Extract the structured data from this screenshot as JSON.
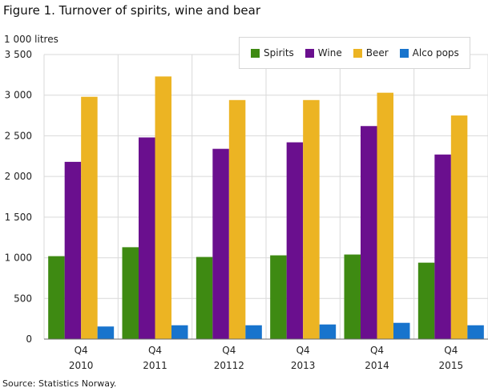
{
  "title": "Figure 1. Turnover of spirits, wine and bear",
  "source": "Source: Statistics Norway.",
  "chart_data": {
    "type": "bar",
    "unit_label": "1 000 litres",
    "categories": [
      {
        "top": "Q4",
        "bottom": "2010"
      },
      {
        "top": "Q4",
        "bottom": "2011"
      },
      {
        "top": "Q4",
        "bottom": "20112"
      },
      {
        "top": "Q4",
        "bottom": "2013"
      },
      {
        "top": "Q4",
        "bottom": "2014"
      },
      {
        "top": "Q4",
        "bottom": "2015"
      }
    ],
    "series": [
      {
        "name": "Spirits",
        "color": "#3e8a12",
        "values": [
          1020,
          1130,
          1010,
          1030,
          1040,
          940
        ]
      },
      {
        "name": "Wine",
        "color": "#6a0f8e",
        "values": [
          2180,
          2480,
          2340,
          2420,
          2620,
          2270
        ]
      },
      {
        "name": "Beer",
        "color": "#ecb423",
        "values": [
          2980,
          3230,
          2940,
          2940,
          3030,
          2750
        ]
      },
      {
        "name": "Alco pops",
        "color": "#1874cd",
        "values": [
          155,
          170,
          170,
          180,
          200,
          170
        ]
      }
    ],
    "ylim": [
      0,
      3500
    ],
    "yticks": [
      {
        "value": 0,
        "label": "0"
      },
      {
        "value": 500,
        "label": "500"
      },
      {
        "value": 1000,
        "label": "1 000"
      },
      {
        "value": 1500,
        "label": "1 500"
      },
      {
        "value": 2000,
        "label": "2 000"
      },
      {
        "value": 2500,
        "label": "2 500"
      },
      {
        "value": 3000,
        "label": "3 000"
      },
      {
        "value": 3500,
        "label": "3 500"
      }
    ],
    "grid": true,
    "legend_position": "top-right"
  }
}
